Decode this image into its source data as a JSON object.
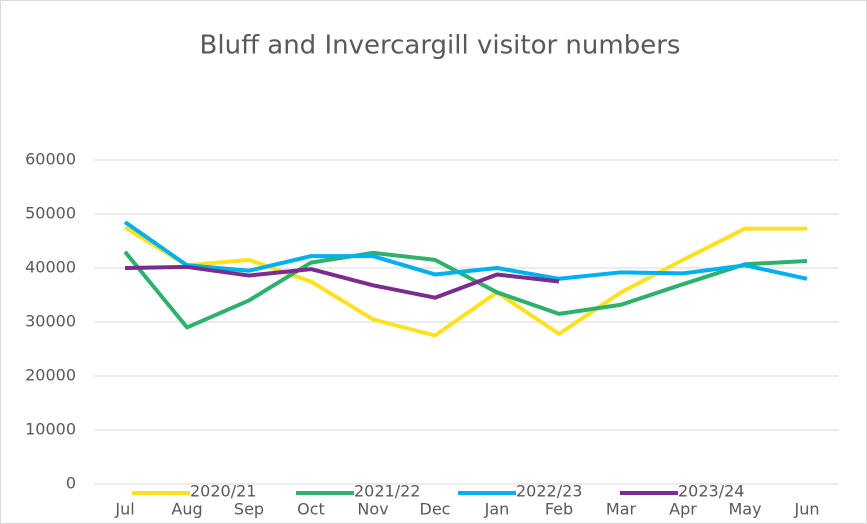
{
  "chart_data": {
    "type": "line",
    "title": "Bluff and Invercargill visitor numbers",
    "categories": [
      "Jul",
      "Aug",
      "Sep",
      "Oct",
      "Nov",
      "Dec",
      "Jan",
      "Feb",
      "Mar",
      "Apr",
      "May",
      "Jun"
    ],
    "series": [
      {
        "name": "2020/21",
        "color": "#FFE11F",
        "values": [
          47500,
          40500,
          41500,
          37500,
          30500,
          27500,
          35500,
          27800,
          35500,
          41500,
          47300,
          47300
        ]
      },
      {
        "name": "2021/22",
        "color": "#2EB16B",
        "values": [
          43000,
          29000,
          34000,
          41000,
          42800,
          41500,
          35500,
          31500,
          33200,
          37000,
          40700,
          41300
        ]
      },
      {
        "name": "2022/23",
        "color": "#00B0F0",
        "values": [
          48500,
          40500,
          39500,
          42200,
          42200,
          38800,
          40000,
          38000,
          39200,
          39000,
          40500,
          38000
        ]
      },
      {
        "name": "2023/24",
        "color": "#7B2C8F",
        "values": [
          40000,
          40200,
          38600,
          39800,
          36800,
          34500,
          38800,
          37500,
          null,
          null,
          null,
          null
        ]
      }
    ],
    "ylim": [
      0,
      60000
    ],
    "yticks": [
      0,
      10000,
      20000,
      30000,
      40000,
      50000,
      60000
    ],
    "grid": true,
    "legend": "bottom"
  }
}
